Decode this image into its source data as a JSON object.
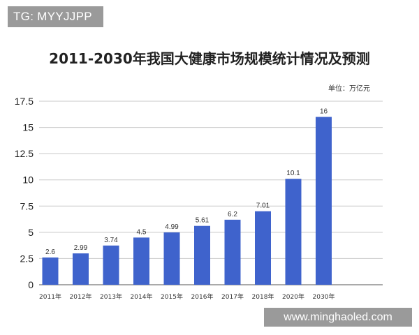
{
  "overlay": {
    "tag": "TG: MYYJJPP",
    "website": "www.minghaoled.com"
  },
  "chart_data": {
    "type": "bar",
    "title": "2011-2030年我国大健康市场规模统计情况及预测",
    "unit": "单位：万亿元",
    "categories": [
      "2011年",
      "2012年",
      "2013年",
      "2014年",
      "2015年",
      "2016年",
      "2017年",
      "2018年",
      "2020年",
      "2030年"
    ],
    "values": [
      2.6,
      2.99,
      3.74,
      4.5,
      4.99,
      5.61,
      6.2,
      7.01,
      10.1,
      16
    ],
    "data_labels": [
      "2.6",
      "2.99",
      "3.74",
      "4.5",
      "4.99",
      "5.61",
      "6.2",
      "7.01",
      "10.1",
      "16"
    ],
    "yticks": [
      "0",
      "2.5",
      "5",
      "7.5",
      "10",
      "12.5",
      "15",
      "17.5"
    ],
    "ylim": [
      0,
      17.5
    ],
    "grid": true,
    "bar_color": "#3f63cc"
  }
}
